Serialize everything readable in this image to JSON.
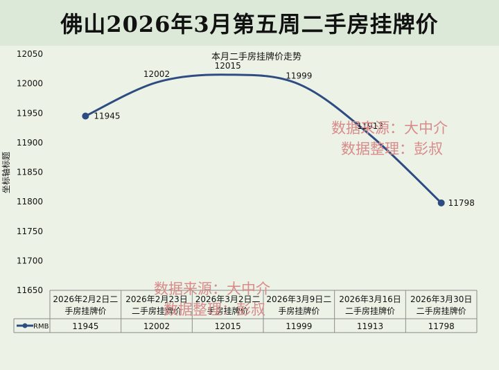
{
  "banner": {
    "title": "佛山2026年3月第五周二手房挂牌价"
  },
  "watermark": {
    "line1": "数据来源：大中介",
    "line2": "数据整理：彭叔"
  },
  "chart_data": {
    "type": "line",
    "title": "本月二手房挂牌价走势",
    "ylabel": "坐标轴标题",
    "xlabel": "",
    "ylim": [
      11650,
      12050
    ],
    "y_ticks": [
      11650,
      11700,
      11750,
      11800,
      11850,
      11900,
      11950,
      12000,
      12050
    ],
    "grid": false,
    "legend_position": "table-left",
    "categories": [
      [
        "2026年2月2日二",
        "手房挂牌价"
      ],
      [
        "2026年2月23日",
        "二手房挂牌价"
      ],
      [
        "2026年3月2日二",
        "手房挂牌价"
      ],
      [
        "2026年3月9日二",
        "手房挂牌价"
      ],
      [
        "2026年3月16日",
        "二手房挂牌价"
      ],
      [
        "2026年3月30日",
        "二手房挂牌价"
      ]
    ],
    "series": [
      {
        "name": "RMB",
        "color": "#2e4c82",
        "values": [
          11945,
          12002,
          12015,
          11999,
          11913,
          11798
        ]
      }
    ]
  },
  "colors": {
    "banner_bg": "#dce9d8",
    "plot_bg": "#ecf3e6",
    "line": "#2e4c82",
    "watermark": "#d98b8b"
  }
}
